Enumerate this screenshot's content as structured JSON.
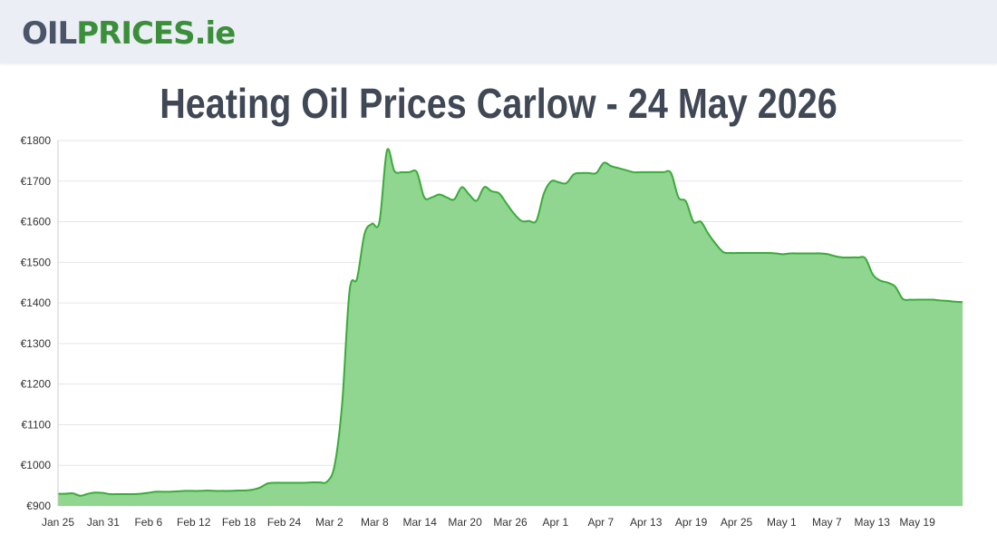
{
  "header": {
    "logo_part1": "OIL",
    "logo_part2": "PRICES.ie"
  },
  "page": {
    "title": "Heating Oil Prices Carlow - 24 May 2026"
  },
  "colors": {
    "fill": "#90d590",
    "line": "#3aab3a",
    "grid": "#e6e6e6",
    "logo_grey": "#4b5568",
    "logo_green": "#3b8f3b",
    "title": "#404856"
  },
  "chart_data": {
    "type": "area",
    "title": "",
    "xlabel": "",
    "ylabel": "",
    "ylim": [
      900,
      1800
    ],
    "grid": true,
    "legend": "none",
    "y_ticks": [
      "€900",
      "€1000",
      "€1100",
      "€1200",
      "€1300",
      "€1400",
      "€1500",
      "€1600",
      "€1700",
      "€1800"
    ],
    "x_ticks": [
      "Jan 25",
      "Jan 31",
      "Feb 6",
      "Feb 12",
      "Feb 18",
      "Feb 24",
      "Mar 2",
      "Mar 8",
      "Mar 14",
      "Mar 20",
      "Mar 26",
      "Apr 1",
      "Apr 7",
      "Apr 13",
      "Apr 19",
      "Apr 25",
      "May 1",
      "May 7",
      "May 13",
      "May 19"
    ],
    "series": [
      {
        "values": [
          930,
          930,
          931,
          925,
          930,
          933,
          932,
          929,
          929,
          929,
          929,
          930,
          932,
          935,
          935,
          935,
          936,
          937,
          937,
          937,
          938,
          937,
          937,
          937,
          938,
          938,
          940,
          945,
          955,
          957,
          957,
          957,
          957,
          957,
          958,
          958,
          960,
          1000,
          1150,
          1430,
          1460,
          1570,
          1595,
          1600,
          1775,
          1725,
          1722,
          1722,
          1722,
          1660,
          1660,
          1667,
          1660,
          1655,
          1685,
          1667,
          1652,
          1685,
          1675,
          1670,
          1645,
          1620,
          1602,
          1602,
          1603,
          1670,
          1700,
          1697,
          1695,
          1717,
          1720,
          1720,
          1720,
          1745,
          1737,
          1732,
          1727,
          1722,
          1722,
          1722,
          1722,
          1722,
          1720,
          1660,
          1650,
          1600,
          1600,
          1570,
          1545,
          1525,
          1523,
          1523,
          1523,
          1523,
          1523,
          1523,
          1522,
          1520,
          1522,
          1522,
          1522,
          1522,
          1522,
          1520,
          1515,
          1512,
          1512,
          1512,
          1510,
          1470,
          1455,
          1450,
          1440,
          1410,
          1408,
          1408,
          1408,
          1408,
          1406,
          1405,
          1403,
          1402
        ]
      }
    ]
  }
}
